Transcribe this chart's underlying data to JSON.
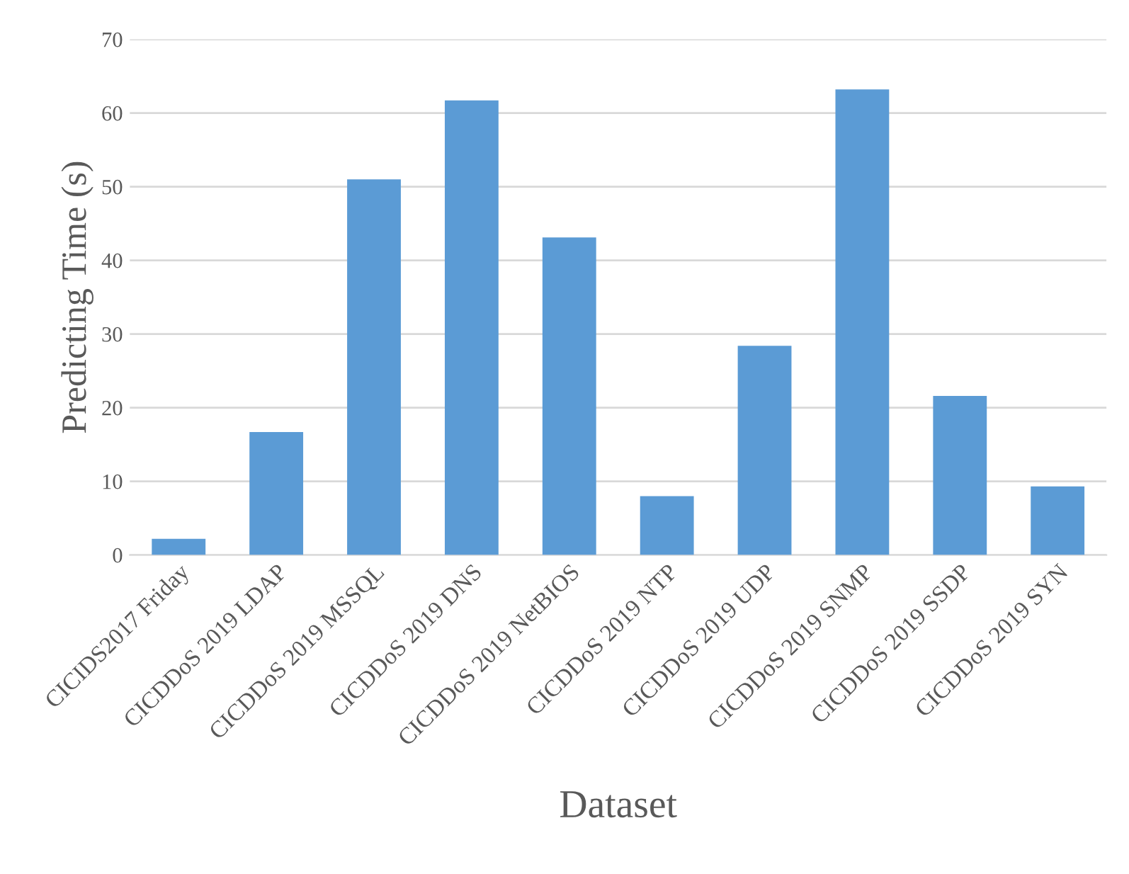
{
  "chart_data": {
    "type": "bar",
    "xlabel": "Dataset",
    "ylabel": "Predicting Time (s)",
    "categories": [
      "CICIDS2017 Friday",
      "CICDDoS 2019 LDAP",
      "CICDDoS 2019 MSSQL",
      "CICDDoS 2019 DNS",
      "CICDDoS 2019 NetBIOS",
      "CICDDoS 2019 NTP",
      "CICDDoS 2019 UDP",
      "CICDDoS 2019 SNMP",
      "CICDDoS 2019 SSDP",
      "CICDDoS 2019 SYN"
    ],
    "values": [
      2.2,
      16.7,
      51,
      61.7,
      43.1,
      8,
      28.4,
      63.2,
      21.6,
      9.3
    ],
    "color": "#5b9bd5",
    "ylim": [
      0,
      70
    ],
    "yticks": [
      0,
      10,
      20,
      30,
      40,
      50,
      60,
      70
    ],
    "grid": "y"
  }
}
